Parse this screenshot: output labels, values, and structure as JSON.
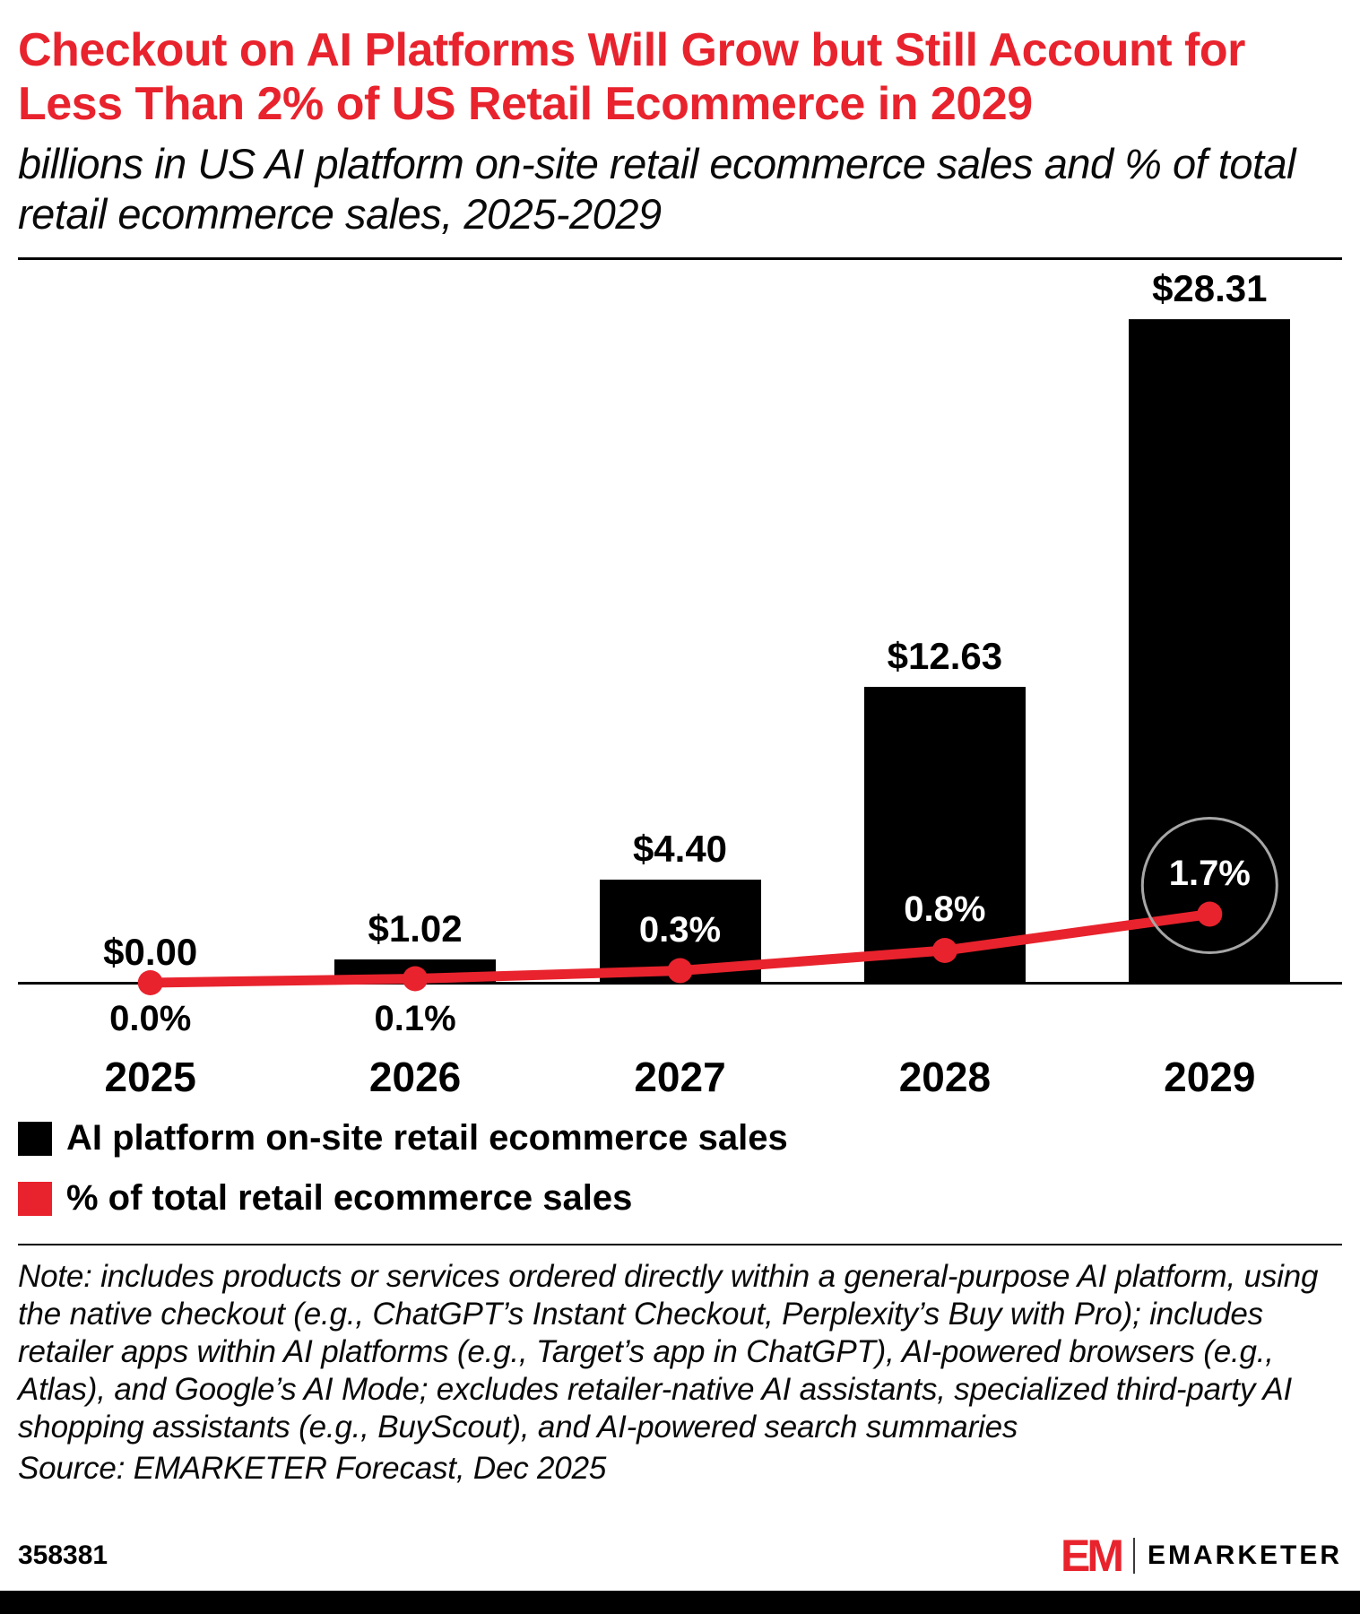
{
  "meta": {
    "accent_red": "#E8232D",
    "bar_black": "#000000",
    "highlight_ring_gray": "#a6a6a6"
  },
  "header": {
    "title": "Checkout on AI Platforms Will Grow but Still Account for Less Than 2% of US Retail Ecommerce in 2029",
    "subtitle": "billions in US AI platform on-site retail ecommerce sales and % of total retail ecommerce sales, 2025-2029"
  },
  "chart_data": {
    "type": "bar",
    "subtype": "bar+line combo",
    "categories": [
      "2025",
      "2026",
      "2027",
      "2028",
      "2029"
    ],
    "series": [
      {
        "name": "AI platform on-site retail ecommerce sales",
        "type": "bar",
        "unit": "billions USD",
        "values": [
          0.0,
          1.02,
          4.4,
          12.63,
          28.31
        ],
        "labels": [
          "$0.00",
          "$1.02",
          "$4.40",
          "$12.63",
          "$28.31"
        ],
        "color": "#000000"
      },
      {
        "name": "% of total retail ecommerce sales",
        "type": "line",
        "unit": "%",
        "values": [
          0.0,
          0.1,
          0.3,
          0.8,
          1.7
        ],
        "labels": [
          "0.0%",
          "0.1%",
          "0.3%",
          "0.8%",
          "1.7%"
        ],
        "color": "#E8232D"
      }
    ],
    "highlight": {
      "category": "2029",
      "label": "1.7%"
    },
    "title": "Checkout on AI Platforms Will Grow but Still Account for Less Than 2% of US Retail Ecommerce in 2029",
    "xlabel": "",
    "ylabel": "",
    "bar_axis_range": [
      0,
      30
    ],
    "line_axis_range": [
      0,
      2
    ],
    "grid": false,
    "legend_position": "bottom-left"
  },
  "legend": [
    {
      "label": "AI platform on-site retail ecommerce sales",
      "color": "#000000"
    },
    {
      "label": "% of total retail ecommerce sales",
      "color": "#E8232D"
    }
  ],
  "footnote": {
    "note": "Note: includes products or services ordered directly within a general-purpose AI platform, using the native checkout (e.g., ChatGPT’s Instant Checkout, Perplexity’s Buy with Pro); includes retailer apps within AI platforms (e.g., Target’s app in ChatGPT), AI-powered browsers (e.g., Atlas), and Google’s AI Mode; excludes retailer-native AI assistants, specialized third-party AI shopping assistants (e.g., BuyScout), and AI-powered search summaries",
    "source": "Source: EMARKETER Forecast, Dec 2025"
  },
  "footer": {
    "chart_id": "358381",
    "logo_text": "EM",
    "brand_name": "EMARKETER"
  }
}
